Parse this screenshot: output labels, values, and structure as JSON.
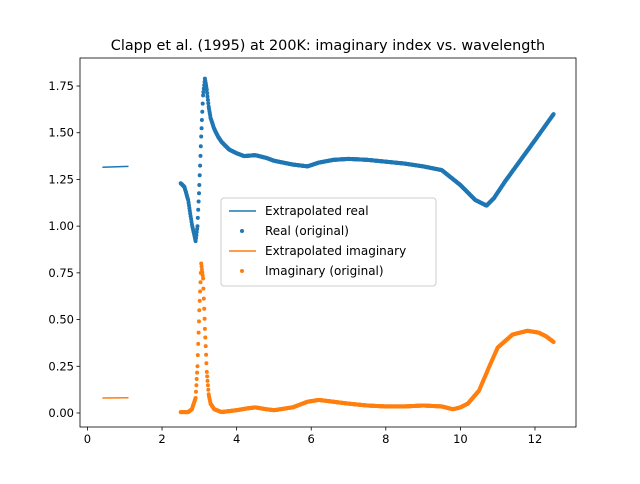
{
  "chart_data": {
    "type": "line",
    "title": "Clapp et al. (1995) at 200K: imaginary index vs. wavelength",
    "xlabel": "",
    "ylabel": "",
    "xlim": [
      -0.2,
      13.1
    ],
    "ylim": [
      -0.075,
      1.9
    ],
    "x_ticks": [
      0,
      2,
      4,
      6,
      8,
      10,
      12
    ],
    "y_ticks": [
      0.0,
      0.25,
      0.5,
      0.75,
      1.0,
      1.25,
      1.5,
      1.75
    ],
    "grid": false,
    "legend_position": "center",
    "series": [
      {
        "name": "Extrapolated real",
        "kind": "line",
        "color": "#1f77b4",
        "x": [
          0.4,
          1.1
        ],
        "y": [
          1.315,
          1.32
        ]
      },
      {
        "name": "Real (original)",
        "kind": "scatter",
        "color": "#1f77b4",
        "x": [
          2.5,
          2.6,
          2.7,
          2.8,
          2.9,
          2.95,
          3.0,
          3.05,
          3.1,
          3.15,
          3.2,
          3.25,
          3.3,
          3.4,
          3.5,
          3.6,
          3.8,
          4.0,
          4.2,
          4.5,
          4.8,
          5.0,
          5.5,
          5.9,
          6.2,
          6.6,
          7.0,
          7.5,
          8.0,
          8.5,
          9.0,
          9.5,
          10.0,
          10.4,
          10.7,
          10.9,
          11.2,
          11.6,
          12.0,
          12.5
        ],
        "y": [
          1.23,
          1.21,
          1.14,
          1.01,
          0.92,
          1.0,
          1.22,
          1.48,
          1.7,
          1.79,
          1.73,
          1.64,
          1.58,
          1.52,
          1.48,
          1.45,
          1.41,
          1.39,
          1.375,
          1.38,
          1.365,
          1.35,
          1.33,
          1.32,
          1.34,
          1.355,
          1.36,
          1.355,
          1.345,
          1.335,
          1.32,
          1.3,
          1.22,
          1.14,
          1.11,
          1.15,
          1.24,
          1.35,
          1.46,
          1.6
        ]
      },
      {
        "name": "Extrapolated imaginary",
        "kind": "line",
        "color": "#ff7f0e",
        "x": [
          0.4,
          1.1
        ],
        "y": [
          0.08,
          0.082
        ]
      },
      {
        "name": "Imaginary (original)",
        "kind": "scatter",
        "color": "#ff7f0e",
        "x": [
          2.5,
          2.7,
          2.8,
          2.9,
          2.95,
          3.0,
          3.05,
          3.1,
          3.15,
          3.2,
          3.25,
          3.3,
          3.4,
          3.6,
          3.8,
          4.0,
          4.3,
          4.5,
          4.8,
          5.0,
          5.5,
          5.9,
          6.2,
          6.6,
          7.0,
          7.5,
          8.0,
          8.5,
          9.0,
          9.5,
          9.8,
          10.0,
          10.2,
          10.5,
          10.8,
          11.0,
          11.4,
          11.8,
          12.1,
          12.3,
          12.5
        ],
        "y": [
          0.005,
          0.005,
          0.02,
          0.08,
          0.25,
          0.55,
          0.8,
          0.72,
          0.45,
          0.22,
          0.1,
          0.05,
          0.02,
          0.005,
          0.01,
          0.015,
          0.025,
          0.03,
          0.02,
          0.015,
          0.03,
          0.06,
          0.07,
          0.06,
          0.05,
          0.04,
          0.035,
          0.035,
          0.04,
          0.035,
          0.02,
          0.03,
          0.05,
          0.12,
          0.26,
          0.35,
          0.42,
          0.44,
          0.43,
          0.41,
          0.38
        ]
      }
    ]
  }
}
